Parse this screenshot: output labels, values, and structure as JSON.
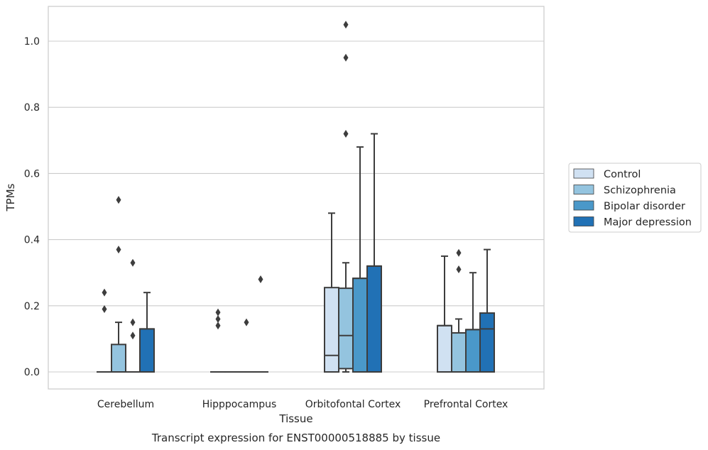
{
  "chart_data": {
    "type": "box",
    "title": "",
    "caption": "Transcript expression for ENST00000518885 by tissue",
    "xlabel": "Tissue",
    "ylabel": "TPMs",
    "ylim": [
      -0.05,
      1.1
    ],
    "yticks": [
      "0.0",
      "0.2",
      "0.4",
      "0.6",
      "0.8",
      "1.0"
    ],
    "grid": "horizontal",
    "legend_position": "right",
    "categories": [
      "Cerebellum",
      "Hipppocampus",
      "Orbitofontal Cortex",
      "Prefrontal Cortex"
    ],
    "series": [
      {
        "name": "Control",
        "color": "#d0e1f2",
        "boxes": [
          {
            "q1": 0,
            "median": 0,
            "q3": 0,
            "whisker_low": 0,
            "whisker_high": 0,
            "outliers": [
              0.24,
              0.19
            ]
          },
          {
            "q1": 0,
            "median": 0,
            "q3": 0,
            "whisker_low": 0,
            "whisker_high": 0,
            "outliers": [
              0.18,
              0.16,
              0.14
            ]
          },
          {
            "q1": 0,
            "median": 0.05,
            "q3": 0.255,
            "whisker_low": 0,
            "whisker_high": 0.48,
            "outliers": []
          },
          {
            "q1": 0,
            "median": 0.14,
            "q3": 0.14,
            "whisker_low": 0,
            "whisker_high": 0.35,
            "outliers": []
          }
        ]
      },
      {
        "name": "Schizophrenia",
        "color": "#94c4df",
        "boxes": [
          {
            "q1": 0,
            "median": 0,
            "q3": 0.083,
            "whisker_low": 0,
            "whisker_high": 0.15,
            "outliers": [
              0.52,
              0.37
            ]
          },
          {
            "q1": 0,
            "median": 0,
            "q3": 0,
            "whisker_low": 0,
            "whisker_high": 0,
            "outliers": []
          },
          {
            "q1": 0.01,
            "median": 0.11,
            "q3": 0.253,
            "whisker_low": 0,
            "whisker_high": 0.33,
            "outliers": [
              1.05,
              0.95,
              0.72
            ]
          },
          {
            "q1": 0,
            "median": 0.118,
            "q3": 0.118,
            "whisker_low": 0,
            "whisker_high": 0.16,
            "outliers": [
              0.36,
              0.31
            ]
          }
        ]
      },
      {
        "name": "Bipolar disorder",
        "color": "#4a98c9",
        "boxes": [
          {
            "q1": 0,
            "median": 0,
            "q3": 0,
            "whisker_low": 0,
            "whisker_high": 0,
            "outliers": [
              0.33,
              0.15,
              0.11
            ]
          },
          {
            "q1": 0,
            "median": 0,
            "q3": 0,
            "whisker_low": 0,
            "whisker_high": 0,
            "outliers": [
              0.15
            ]
          },
          {
            "q1": 0,
            "median": 0.283,
            "q3": 0.283,
            "whisker_low": 0,
            "whisker_high": 0.68,
            "outliers": []
          },
          {
            "q1": 0,
            "median": 0.128,
            "q3": 0.128,
            "whisker_low": 0,
            "whisker_high": 0.3,
            "outliers": []
          }
        ]
      },
      {
        "name": "Major depression",
        "color": "#2171b5",
        "boxes": [
          {
            "q1": 0,
            "median": 0.13,
            "q3": 0.13,
            "whisker_low": 0,
            "whisker_high": 0.24,
            "outliers": []
          },
          {
            "q1": 0,
            "median": 0,
            "q3": 0,
            "whisker_low": 0,
            "whisker_high": 0,
            "outliers": [
              0.28
            ]
          },
          {
            "q1": 0,
            "median": 0.32,
            "q3": 0.32,
            "whisker_low": 0,
            "whisker_high": 0.72,
            "outliers": []
          },
          {
            "q1": 0,
            "median": 0.13,
            "q3": 0.178,
            "whisker_low": 0,
            "whisker_high": 0.37,
            "outliers": []
          }
        ]
      }
    ]
  }
}
